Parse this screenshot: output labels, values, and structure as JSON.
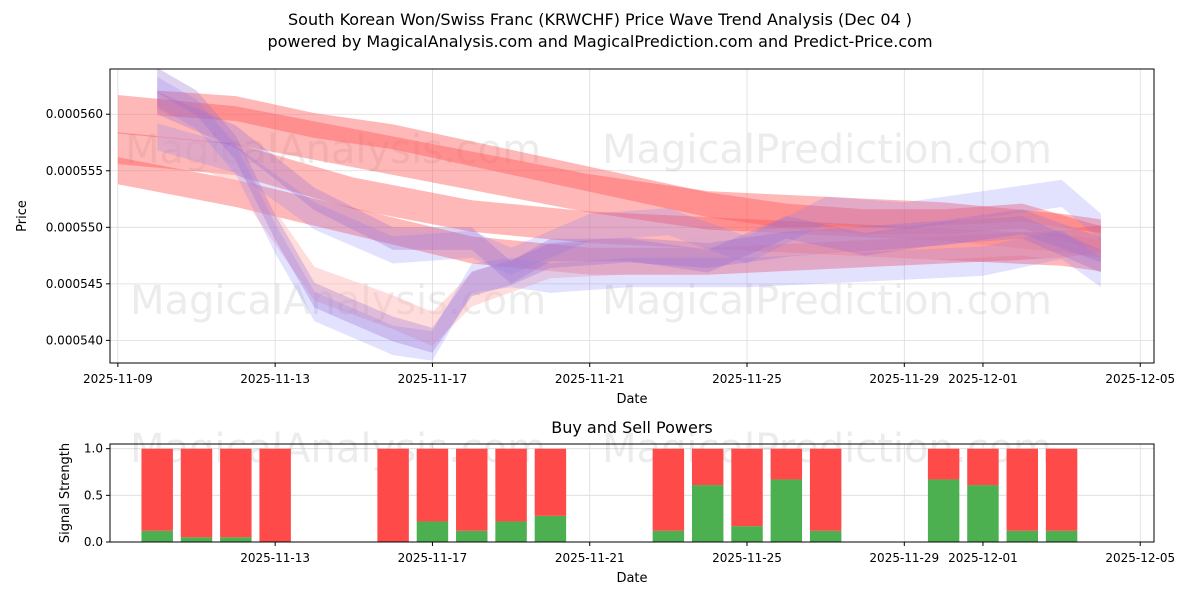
{
  "title_line1": "South Korean Won/Swiss Franc (KRWCHF) Price Wave Trend Analysis (Dec 04 )",
  "title_line2": "powered by MagicalAnalysis.com and MagicalPrediction.com and Predict-Price.com",
  "watermarks": [
    "MagicalAnalysis.com",
    "MagicalPrediction.com"
  ],
  "colors": {
    "sell": "#ff4a4a",
    "buy": "#4caf50",
    "band_red": "#ff5555",
    "band_blue": "#7b7bff",
    "band_purple": "#9a6fd0",
    "band_pink": "#ffb3b3"
  },
  "chart_data": [
    {
      "type": "area",
      "title": "",
      "xlabel": "Date",
      "ylabel": "Price",
      "xlim": [
        "2025-11-09",
        "2025-12-05"
      ],
      "ylim": [
        0.000538,
        0.000564
      ],
      "x_ticks": [
        "2025-11-09",
        "2025-11-13",
        "2025-11-17",
        "2025-11-21",
        "2025-11-25",
        "2025-11-29",
        "2025-12-01",
        "2025-12-05"
      ],
      "y_ticks": [
        "0.000540",
        "0.000545",
        "0.000550",
        "0.000555",
        "0.000560"
      ],
      "grid": true,
      "series": [
        {
          "name": "red-band-1",
          "color": "red",
          "width": 3.4e-06,
          "x": [
            "2025-11-09",
            "2025-11-12",
            "2025-11-15",
            "2025-11-18",
            "2025-11-21",
            "2025-11-24",
            "2025-11-27",
            "2025-11-30",
            "2025-12-03",
            "2025-12-04"
          ],
          "y": [
            0.00056,
            0.000559,
            0.000557,
            0.000555,
            0.000553,
            0.0005515,
            0.000551,
            0.0005505,
            0.0005495,
            0.000549
          ]
        },
        {
          "name": "red-band-2",
          "color": "red",
          "width": 2.8e-06,
          "x": [
            "2025-11-09",
            "2025-11-12",
            "2025-11-15",
            "2025-11-18",
            "2025-11-21",
            "2025-11-24",
            "2025-11-27",
            "2025-11-30",
            "2025-12-03",
            "2025-12-04"
          ],
          "y": [
            0.000557,
            0.000556,
            0.000553,
            0.000551,
            0.00055,
            0.0005495,
            0.000549,
            0.0005485,
            0.000548,
            0.0005475
          ]
        },
        {
          "name": "red-band-3",
          "color": "red",
          "width": 2.4e-06,
          "x": [
            "2025-11-09",
            "2025-11-12",
            "2025-11-15",
            "2025-11-18",
            "2025-11-21",
            "2025-11-24",
            "2025-11-27",
            "2025-11-30",
            "2025-12-03",
            "2025-12-04"
          ],
          "y": [
            0.000555,
            0.000553,
            0.0005505,
            0.000548,
            0.000547,
            0.000547,
            0.0005475,
            0.000548,
            0.0005485,
            0.000549
          ]
        },
        {
          "name": "red-band-4",
          "color": "red",
          "width": 2.2e-06,
          "x": [
            "2025-11-10",
            "2025-11-12",
            "2025-11-14",
            "2025-11-16",
            "2025-11-18",
            "2025-11-20",
            "2025-11-22",
            "2025-11-24",
            "2025-11-26",
            "2025-11-28",
            "2025-11-30",
            "2025-12-02",
            "2025-12-04"
          ],
          "y": [
            0.000561,
            0.0005605,
            0.000559,
            0.000558,
            0.0005565,
            0.000555,
            0.0005535,
            0.000552,
            0.000551,
            0.0005505,
            0.0005505,
            0.000551,
            0.000549
          ]
        },
        {
          "name": "pink-band",
          "color": "pink",
          "width": 3e-06,
          "x": [
            "2025-11-10",
            "2025-11-12",
            "2025-11-14",
            "2025-11-16",
            "2025-11-17",
            "2025-11-18",
            "2025-11-20",
            "2025-11-23",
            "2025-11-26",
            "2025-11-29",
            "2025-12-02",
            "2025-12-04"
          ],
          "y": [
            0.000559,
            0.000555,
            0.000545,
            0.0005425,
            0.000541,
            0.0005445,
            0.000547,
            0.0005475,
            0.0005485,
            0.0005485,
            0.000549,
            0.000548
          ]
        },
        {
          "name": "blue-band-1",
          "color": "blue",
          "width": 2.6e-06,
          "x": [
            "2025-11-10",
            "2025-11-11",
            "2025-11-12",
            "2025-11-13",
            "2025-11-14",
            "2025-11-15",
            "2025-11-16",
            "2025-11-17",
            "2025-11-18",
            "2025-11-19",
            "2025-11-20",
            "2025-11-22",
            "2025-11-25",
            "2025-11-28",
            "2025-12-01",
            "2025-12-03",
            "2025-12-04"
          ],
          "y": [
            0.000562,
            0.00056,
            0.000556,
            0.000549,
            0.000543,
            0.0005415,
            0.00054,
            0.0005395,
            0.0005455,
            0.000546,
            0.0005455,
            0.000546,
            0.000546,
            0.0005465,
            0.000547,
            0.0005485,
            0.000546
          ]
        },
        {
          "name": "blue-band-2",
          "color": "blue",
          "width": 2.4e-06,
          "x": [
            "2025-11-10",
            "2025-11-12",
            "2025-11-14",
            "2025-11-16",
            "2025-11-18",
            "2025-11-19",
            "2025-11-21",
            "2025-11-23",
            "2025-11-25",
            "2025-11-27",
            "2025-11-29",
            "2025-12-01",
            "2025-12-03",
            "2025-12-04"
          ],
          "y": [
            0.000558,
            0.000556,
            0.000551,
            0.000548,
            0.0005485,
            0.000547,
            0.00055,
            0.0005505,
            0.000548,
            0.0005515,
            0.000551,
            0.000552,
            0.000553,
            0.00055
          ]
        },
        {
          "name": "purple-band-1",
          "color": "purple",
          "width": 2.2e-06,
          "x": [
            "2025-11-10",
            "2025-11-11",
            "2025-11-12",
            "2025-11-13",
            "2025-11-14",
            "2025-11-15",
            "2025-11-16",
            "2025-11-17",
            "2025-11-18",
            "2025-11-19",
            "2025-11-20",
            "2025-11-22",
            "2025-11-24",
            "2025-11-26",
            "2025-11-28",
            "2025-11-30",
            "2025-12-02",
            "2025-12-04"
          ],
          "y": [
            0.000563,
            0.000561,
            0.000557,
            0.00055,
            0.000544,
            0.0005425,
            0.000541,
            0.00054,
            0.000545,
            0.000546,
            0.0005475,
            0.000548,
            0.0005475,
            0.0005485,
            0.000549,
            0.0005495,
            0.0005505,
            0.000548
          ]
        },
        {
          "name": "purple-band-2",
          "color": "purple",
          "width": 2e-06,
          "x": [
            "2025-11-10",
            "2025-11-12",
            "2025-11-14",
            "2025-11-16",
            "2025-11-18",
            "2025-11-19",
            "2025-11-20",
            "2025-11-22",
            "2025-11-24",
            "2025-11-26",
            "2025-11-28",
            "2025-11-30",
            "2025-12-02",
            "2025-12-04"
          ],
          "y": [
            0.000561,
            0.000558,
            0.0005525,
            0.000549,
            0.000549,
            0.000546,
            0.000548,
            0.000548,
            0.000547,
            0.00055,
            0.0005485,
            0.0005495,
            0.00055,
            0.000547
          ]
        }
      ]
    },
    {
      "type": "bar",
      "title": "Buy and Sell Powers",
      "xlabel": "Date",
      "ylabel": "Signal Strength",
      "xlim": [
        "2025-11-09",
        "2025-12-05"
      ],
      "ylim": [
        0,
        1.05
      ],
      "x_ticks": [
        "2025-11-13",
        "2025-11-17",
        "2025-11-21",
        "2025-11-25",
        "2025-11-29",
        "2025-12-01",
        "2025-12-05"
      ],
      "y_ticks": [
        "0.0",
        "0.5",
        "1.0"
      ],
      "grid": true,
      "categories": [
        "2025-11-10",
        "2025-11-11",
        "2025-11-12",
        "2025-11-13",
        "2025-11-16",
        "2025-11-17",
        "2025-11-18",
        "2025-11-19",
        "2025-11-20",
        "2025-11-23",
        "2025-11-24",
        "2025-11-25",
        "2025-11-26",
        "2025-11-27",
        "2025-11-30",
        "2025-12-01",
        "2025-12-02",
        "2025-12-03"
      ],
      "series": [
        {
          "name": "Buy",
          "values": [
            0.12,
            0.05,
            0.05,
            0.0,
            0.0,
            0.22,
            0.12,
            0.22,
            0.28,
            0.12,
            0.61,
            0.17,
            0.67,
            0.12,
            0.67,
            0.61,
            0.12,
            0.12
          ]
        },
        {
          "name": "Sell",
          "values": [
            0.88,
            0.95,
            0.95,
            1.0,
            1.0,
            0.78,
            0.88,
            0.78,
            0.72,
            0.88,
            0.39,
            0.83,
            0.33,
            0.88,
            0.33,
            0.39,
            0.88,
            0.88
          ]
        }
      ]
    }
  ]
}
